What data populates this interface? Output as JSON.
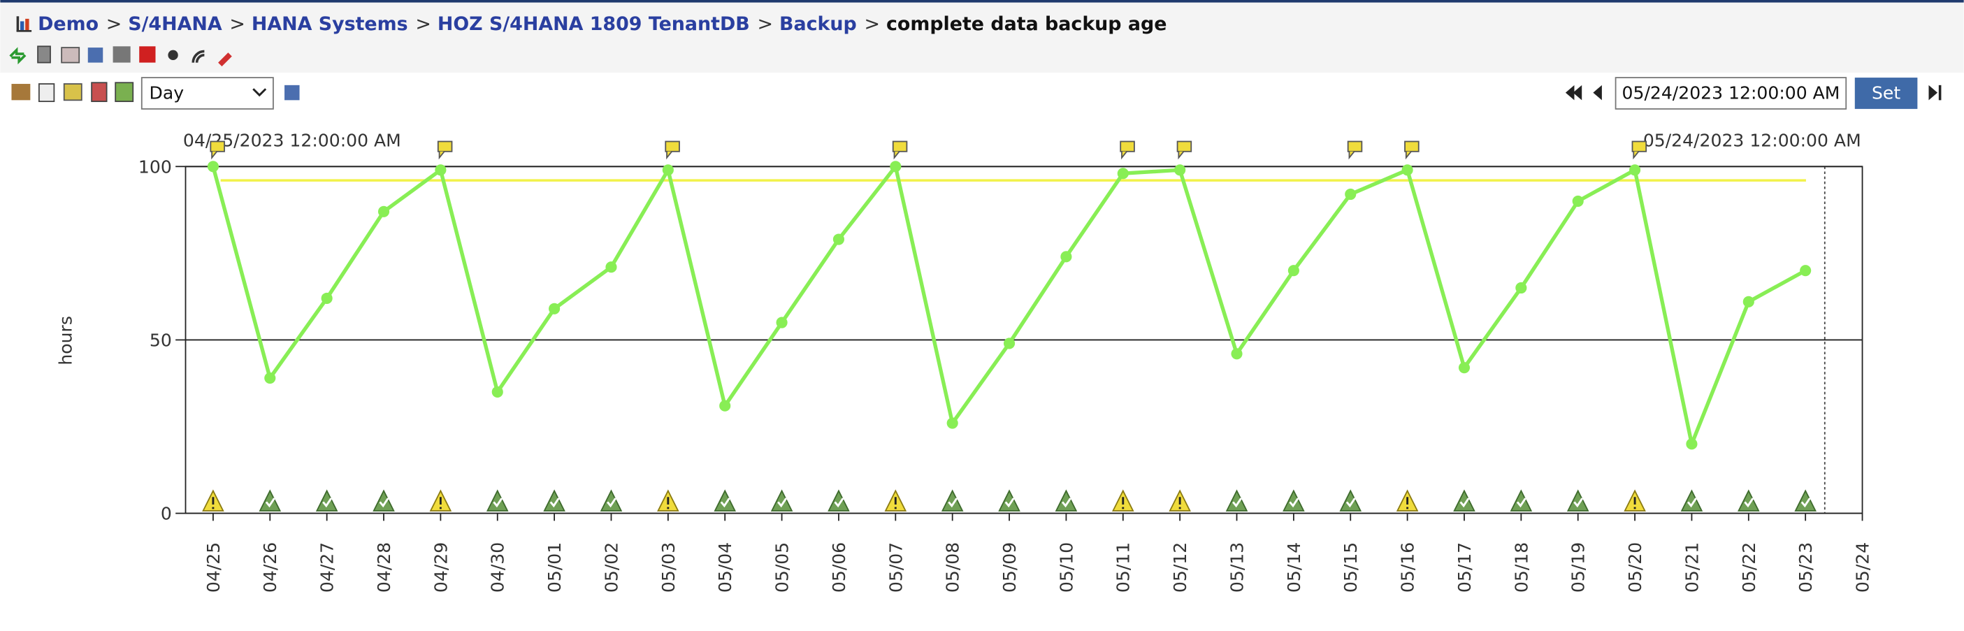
{
  "breadcrumb": {
    "items": [
      "Demo",
      "S/4HANA",
      "HANA Systems",
      "HOZ S/4HANA 1809 TenantDB",
      "Backup"
    ],
    "separator": ">",
    "current": "complete data backup age"
  },
  "controls": {
    "period": "Day",
    "date": "05/24/2023 12:00:00 AM",
    "button": "Set"
  },
  "chart_data": {
    "type": "line",
    "range_start": "04/25/2023 12:00:00 AM",
    "range_end": "05/24/2023 12:00:00 AM",
    "ylabel": "hours",
    "categories": [
      "04/25",
      "04/26",
      "04/27",
      "04/28",
      "04/29",
      "04/30",
      "05/01",
      "05/02",
      "05/03",
      "05/04",
      "05/05",
      "05/06",
      "05/07",
      "05/08",
      "05/09",
      "05/10",
      "05/11",
      "05/12",
      "05/13",
      "05/14",
      "05/15",
      "05/16",
      "05/17",
      "05/18",
      "05/19",
      "05/20",
      "05/21",
      "05/22",
      "05/23",
      "05/24"
    ],
    "series": [
      {
        "name": "complete data backup age",
        "color": "#88ee55",
        "values": [
          100,
          39,
          62,
          87,
          99,
          35,
          59,
          71,
          99,
          31,
          55,
          79,
          100,
          26,
          49,
          74,
          98,
          99,
          46,
          70,
          92,
          99,
          42,
          65,
          90,
          99,
          20,
          61,
          70,
          null
        ]
      }
    ],
    "threshold": 96,
    "threshold_color": "#f2f24a",
    "status": [
      "warning",
      "ok",
      "ok",
      "ok",
      "warning",
      "ok",
      "ok",
      "ok",
      "warning",
      "ok",
      "ok",
      "ok",
      "warning",
      "ok",
      "ok",
      "ok",
      "warning",
      "warning",
      "ok",
      "ok",
      "ok",
      "warning",
      "ok",
      "ok",
      "ok",
      "warning",
      "ok",
      "ok",
      "ok",
      null
    ],
    "alerts": [
      true,
      false,
      false,
      false,
      true,
      false,
      false,
      false,
      true,
      false,
      false,
      false,
      true,
      false,
      false,
      false,
      true,
      true,
      false,
      false,
      true,
      true,
      false,
      false,
      false,
      true,
      false,
      false,
      false,
      false
    ],
    "ylim": [
      0,
      100
    ],
    "yticks": [
      0,
      50,
      100
    ],
    "grid": true
  }
}
